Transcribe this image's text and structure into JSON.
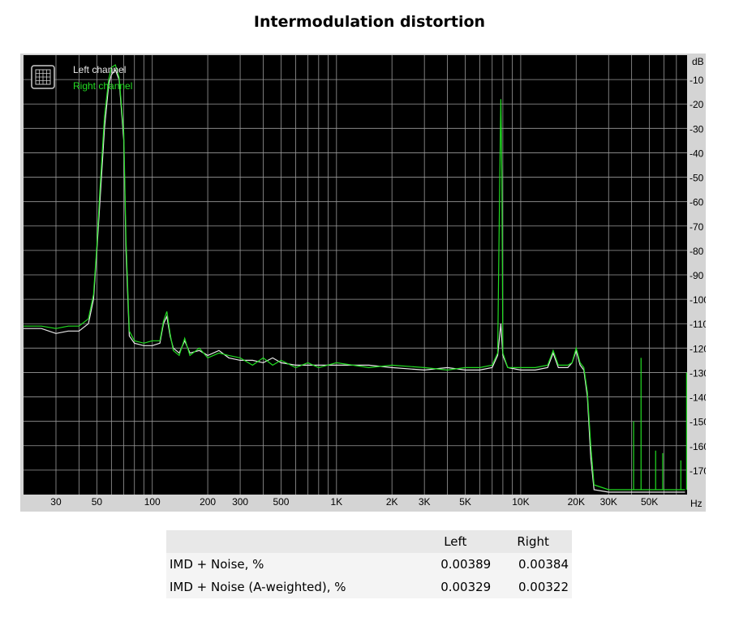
{
  "title": "Intermodulation distortion",
  "chart_data": {
    "type": "line",
    "title": "Intermodulation distortion",
    "x_scale": "log",
    "xlim": [
      20,
      80000
    ],
    "ylim": [
      -180,
      0
    ],
    "x_unit_label": "Hz",
    "y_unit_label": "dB",
    "x_ticks": [
      {
        "value": 30,
        "label": "30"
      },
      {
        "value": 50,
        "label": "50"
      },
      {
        "value": 100,
        "label": "100"
      },
      {
        "value": 200,
        "label": "200"
      },
      {
        "value": 300,
        "label": "300"
      },
      {
        "value": 500,
        "label": "500"
      },
      {
        "value": 1000,
        "label": "1K"
      },
      {
        "value": 2000,
        "label": "2K"
      },
      {
        "value": 3000,
        "label": "3K"
      },
      {
        "value": 5000,
        "label": "5K"
      },
      {
        "value": 10000,
        "label": "10K"
      },
      {
        "value": 20000,
        "label": "20K"
      },
      {
        "value": 30000,
        "label": "30K"
      },
      {
        "value": 50000,
        "label": "50K"
      }
    ],
    "y_ticks": [
      {
        "value": -10,
        "label": "-10"
      },
      {
        "value": -20,
        "label": "-20"
      },
      {
        "value": -30,
        "label": "-30"
      },
      {
        "value": -40,
        "label": "-40"
      },
      {
        "value": -50,
        "label": "-50"
      },
      {
        "value": -60,
        "label": "-60"
      },
      {
        "value": -70,
        "label": "-70"
      },
      {
        "value": -80,
        "label": "-80"
      },
      {
        "value": -90,
        "label": "-90"
      },
      {
        "value": -100,
        "label": "-100"
      },
      {
        "value": -110,
        "label": "-110"
      },
      {
        "value": -120,
        "label": "-120"
      },
      {
        "value": -130,
        "label": "-130"
      },
      {
        "value": -140,
        "label": "-140"
      },
      {
        "value": -150,
        "label": "-150"
      },
      {
        "value": -160,
        "label": "-160"
      },
      {
        "value": -170,
        "label": "-170"
      }
    ],
    "grid": true,
    "legend_position": "top-left",
    "series": [
      {
        "name": "Left channel",
        "color": "#e8e8e8",
        "points": [
          [
            20,
            -112
          ],
          [
            25,
            -112
          ],
          [
            30,
            -114
          ],
          [
            35,
            -113
          ],
          [
            40,
            -113
          ],
          [
            45,
            -110
          ],
          [
            48,
            -100
          ],
          [
            50,
            -80
          ],
          [
            52,
            -60
          ],
          [
            55,
            -30
          ],
          [
            58,
            -12
          ],
          [
            60,
            -8
          ],
          [
            63,
            -6
          ],
          [
            66,
            -10
          ],
          [
            70,
            -35
          ],
          [
            72,
            -80
          ],
          [
            75,
            -115
          ],
          [
            80,
            -118
          ],
          [
            90,
            -119
          ],
          [
            100,
            -119
          ],
          [
            110,
            -118
          ],
          [
            115,
            -110
          ],
          [
            120,
            -107
          ],
          [
            125,
            -115
          ],
          [
            130,
            -120
          ],
          [
            140,
            -122
          ],
          [
            150,
            -117
          ],
          [
            160,
            -122
          ],
          [
            180,
            -121
          ],
          [
            200,
            -123
          ],
          [
            230,
            -121
          ],
          [
            260,
            -124
          ],
          [
            300,
            -125
          ],
          [
            350,
            -125
          ],
          [
            400,
            -126
          ],
          [
            450,
            -124
          ],
          [
            500,
            -126
          ],
          [
            600,
            -127
          ],
          [
            700,
            -127
          ],
          [
            800,
            -127
          ],
          [
            1000,
            -127
          ],
          [
            1500,
            -127
          ],
          [
            2000,
            -128
          ],
          [
            3000,
            -129
          ],
          [
            4000,
            -128
          ],
          [
            5000,
            -129
          ],
          [
            6000,
            -129
          ],
          [
            7000,
            -128
          ],
          [
            7500,
            -123
          ],
          [
            7800,
            -110
          ],
          [
            8000,
            -123
          ],
          [
            8500,
            -128
          ],
          [
            10000,
            -129
          ],
          [
            12000,
            -129
          ],
          [
            14000,
            -128
          ],
          [
            15000,
            -122
          ],
          [
            16000,
            -128
          ],
          [
            18000,
            -128
          ],
          [
            19000,
            -126
          ],
          [
            20000,
            -121
          ],
          [
            21000,
            -127
          ],
          [
            22000,
            -129
          ],
          [
            23000,
            -140
          ],
          [
            24000,
            -165
          ],
          [
            25000,
            -178
          ],
          [
            30000,
            -179
          ],
          [
            40000,
            -179
          ],
          [
            50000,
            -179
          ],
          [
            70000,
            -179
          ],
          [
            78000,
            -179
          ]
        ]
      },
      {
        "name": "Right channel",
        "color": "#22dd22",
        "points": [
          [
            20,
            -111
          ],
          [
            25,
            -111
          ],
          [
            30,
            -112
          ],
          [
            35,
            -111
          ],
          [
            40,
            -111
          ],
          [
            45,
            -108
          ],
          [
            48,
            -98
          ],
          [
            50,
            -78
          ],
          [
            52,
            -55
          ],
          [
            55,
            -25
          ],
          [
            58,
            -10
          ],
          [
            60,
            -5
          ],
          [
            63,
            -4
          ],
          [
            66,
            -9
          ],
          [
            70,
            -32
          ],
          [
            72,
            -75
          ],
          [
            75,
            -113
          ],
          [
            80,
            -117
          ],
          [
            90,
            -118
          ],
          [
            100,
            -117
          ],
          [
            110,
            -117
          ],
          [
            115,
            -109
          ],
          [
            120,
            -105
          ],
          [
            125,
            -114
          ],
          [
            130,
            -121
          ],
          [
            140,
            -123
          ],
          [
            150,
            -116
          ],
          [
            160,
            -123
          ],
          [
            180,
            -120
          ],
          [
            200,
            -124
          ],
          [
            230,
            -122
          ],
          [
            260,
            -123
          ],
          [
            300,
            -124
          ],
          [
            350,
            -127
          ],
          [
            400,
            -124
          ],
          [
            450,
            -127
          ],
          [
            500,
            -125
          ],
          [
            600,
            -128
          ],
          [
            700,
            -126
          ],
          [
            800,
            -128
          ],
          [
            1000,
            -126
          ],
          [
            1500,
            -128
          ],
          [
            2000,
            -127
          ],
          [
            3000,
            -128
          ],
          [
            4000,
            -129
          ],
          [
            5000,
            -128
          ],
          [
            6000,
            -128
          ],
          [
            7000,
            -127
          ],
          [
            7500,
            -122
          ],
          [
            7700,
            -50
          ],
          [
            7800,
            -18
          ],
          [
            7900,
            -50
          ],
          [
            8000,
            -122
          ],
          [
            8500,
            -128
          ],
          [
            10000,
            -128
          ],
          [
            12000,
            -128
          ],
          [
            14000,
            -127
          ],
          [
            15000,
            -121
          ],
          [
            16000,
            -127
          ],
          [
            18000,
            -127
          ],
          [
            19000,
            -126
          ],
          [
            20000,
            -120
          ],
          [
            21000,
            -126
          ],
          [
            22000,
            -128
          ],
          [
            23000,
            -138
          ],
          [
            24000,
            -160
          ],
          [
            25000,
            -176
          ],
          [
            30000,
            -178
          ],
          [
            40000,
            -178
          ],
          [
            50000,
            -178
          ],
          [
            70000,
            -178
          ],
          [
            78000,
            -178
          ]
        ]
      }
    ],
    "spikes": [
      {
        "series": "Right channel",
        "x": 41000,
        "y": -150
      },
      {
        "series": "Right channel",
        "x": 45000,
        "y": -124
      },
      {
        "series": "Right channel",
        "x": 54000,
        "y": -162
      },
      {
        "series": "Right channel",
        "x": 59000,
        "y": -163
      },
      {
        "series": "Right channel",
        "x": 74000,
        "y": -166
      },
      {
        "series": "Right channel",
        "x": 79500,
        "y": -130
      }
    ]
  },
  "results": {
    "headers": [
      "",
      "Left",
      "Right"
    ],
    "rows": [
      {
        "label": "IMD + Noise, %",
        "left": "0.00389",
        "right": "0.00384"
      },
      {
        "label": "IMD + Noise (A-weighted), %",
        "left": "0.00329",
        "right": "0.00322"
      }
    ]
  }
}
